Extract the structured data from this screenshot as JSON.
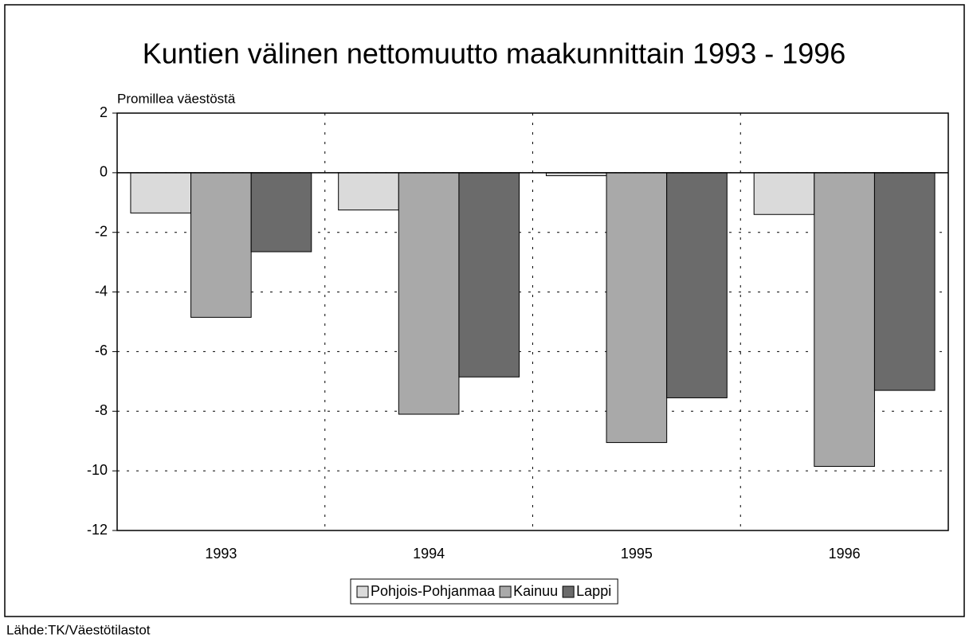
{
  "chart_data": {
    "type": "bar",
    "title": "Kuntien välinen nettomuutto maakunnittain 1993 - 1996",
    "y_axis_label": "Promillea väestöstä",
    "source": "Lähde:TK/Väestötilastot",
    "categories": [
      "1993",
      "1994",
      "1995",
      "1996"
    ],
    "series": [
      {
        "name": "Pohjois-Pohjanmaa",
        "color": "#dadada",
        "values": [
          -1.35,
          -1.25,
          -0.1,
          -1.4
        ]
      },
      {
        "name": "Kainuu",
        "color": "#a9a9a9",
        "values": [
          -4.85,
          -8.1,
          -9.05,
          -9.85
        ]
      },
      {
        "name": "Lappi",
        "color": "#6b6b6b",
        "values": [
          -2.65,
          -6.85,
          -7.55,
          -7.3
        ]
      }
    ],
    "ylim": [
      -12,
      2
    ],
    "yticks": [
      -12,
      -10,
      -8,
      -6,
      -4,
      -2,
      0,
      2
    ],
    "grid": true,
    "legend": "bottom"
  }
}
